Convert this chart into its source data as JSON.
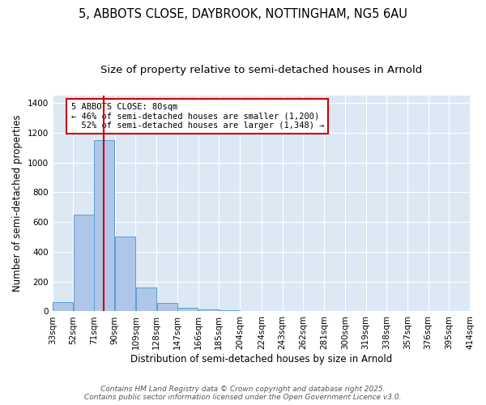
{
  "title_line1": "5, ABBOTS CLOSE, DAYBROOK, NOTTINGHAM, NG5 6AU",
  "title_line2": "Size of property relative to semi-detached houses in Arnold",
  "xlabel": "Distribution of semi-detached houses by size in Arnold",
  "ylabel": "Number of semi-detached properties",
  "bin_labels": [
    "33sqm",
    "52sqm",
    "71sqm",
    "90sqm",
    "109sqm",
    "128sqm",
    "147sqm",
    "166sqm",
    "185sqm",
    "204sqm",
    "224sqm",
    "243sqm",
    "262sqm",
    "281sqm",
    "300sqm",
    "319sqm",
    "338sqm",
    "357sqm",
    "376sqm",
    "395sqm",
    "414sqm"
  ],
  "bin_edges": [
    33,
    52,
    71,
    90,
    109,
    128,
    147,
    166,
    185,
    204,
    224,
    243,
    262,
    281,
    300,
    319,
    338,
    357,
    376,
    395,
    414
  ],
  "bar_values": [
    60,
    650,
    1150,
    500,
    160,
    55,
    25,
    15,
    10,
    0,
    0,
    0,
    0,
    0,
    0,
    0,
    0,
    0,
    0,
    0
  ],
  "bar_color": "#aec6e8",
  "bar_edge_color": "#5a9fd4",
  "background_color": "#dde8f5",
  "property_size": 80,
  "property_size_label": "5 ABBOTS CLOSE: 80sqm",
  "pct_smaller": 46,
  "count_smaller": 1200,
  "pct_larger": 52,
  "count_larger": 1348,
  "red_line_color": "#cc0000",
  "annotation_box_color": "#cc0000",
  "ylim": [
    0,
    1450
  ],
  "yticks": [
    0,
    200,
    400,
    600,
    800,
    1000,
    1200,
    1400
  ],
  "footer_line1": "Contains HM Land Registry data © Crown copyright and database right 2025.",
  "footer_line2": "Contains public sector information licensed under the Open Government Licence v3.0.",
  "title_fontsize": 10.5,
  "subtitle_fontsize": 9.5,
  "axis_label_fontsize": 8.5,
  "tick_fontsize": 7.5,
  "annotation_fontsize": 7.5,
  "footer_fontsize": 6.5
}
